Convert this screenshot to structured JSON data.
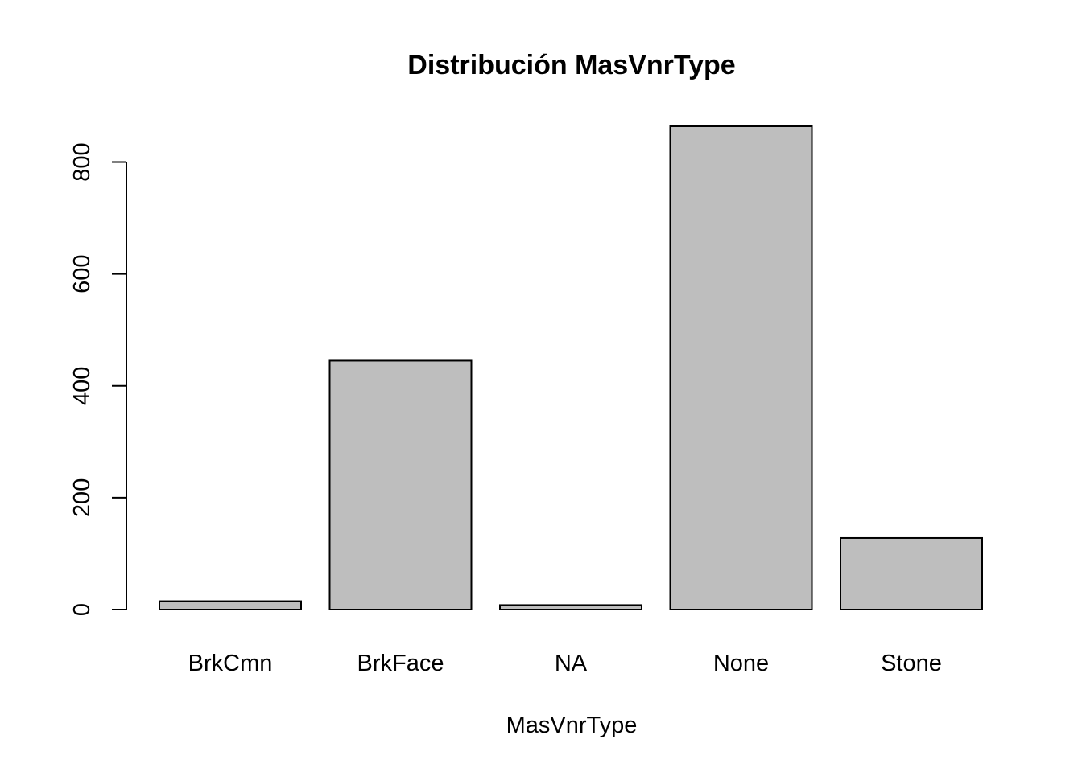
{
  "chart_data": {
    "type": "bar",
    "title": "Distribución MasVnrType",
    "xlabel": "MasVnrType",
    "ylabel": "",
    "categories": [
      "BrkCmn",
      "BrkFace",
      "NA",
      "None",
      "Stone"
    ],
    "values": [
      15,
      445,
      8,
      864,
      128
    ],
    "ylim": [
      0,
      864
    ],
    "y_ticks": [
      0,
      200,
      400,
      600,
      800
    ],
    "bar_fill": "#bebebe",
    "bar_stroke": "#000000",
    "grid": false
  }
}
